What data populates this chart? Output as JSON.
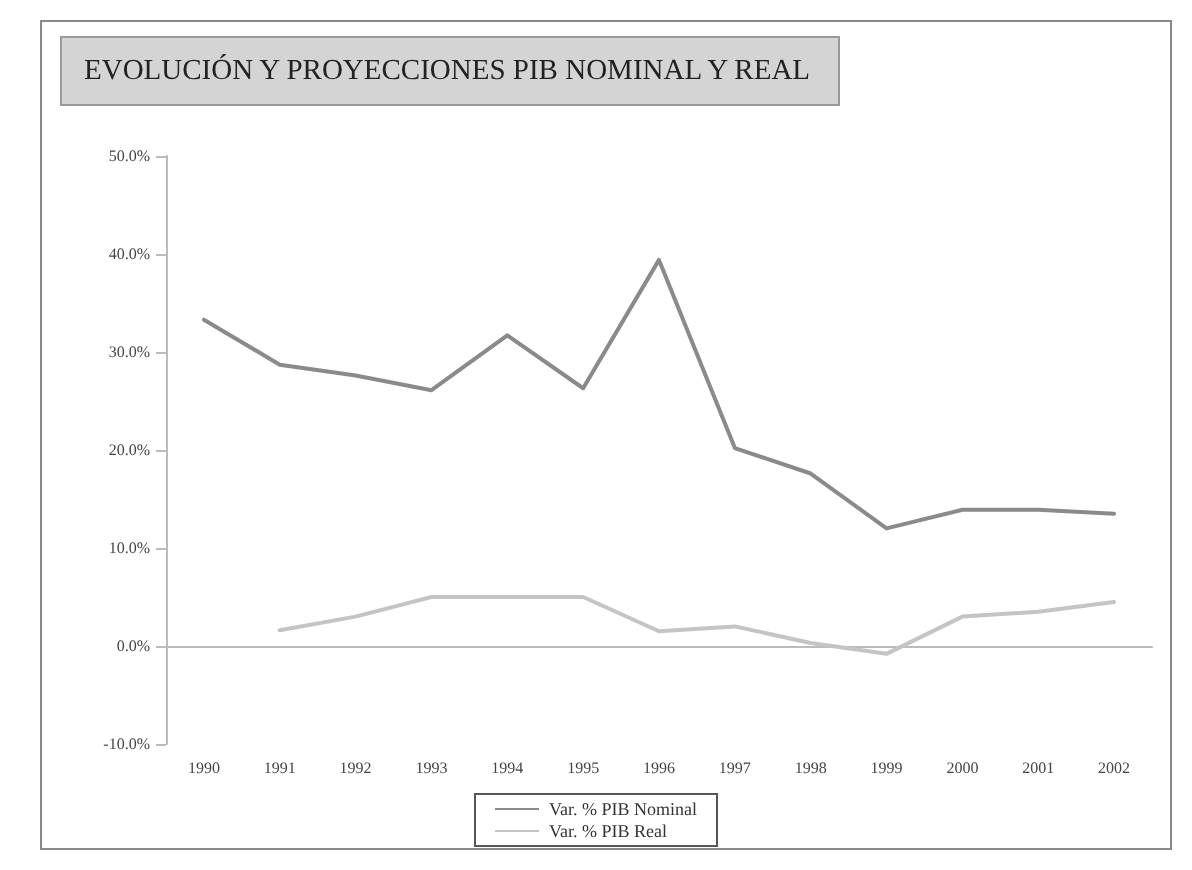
{
  "chart_data": {
    "type": "line",
    "title": "EVOLUCIÓN Y PROYECCIONES PIB NOMINAL Y REAL",
    "categories": [
      "1990",
      "1991",
      "1992",
      "1993",
      "1994",
      "1995",
      "1996",
      "1997",
      "1998",
      "1999",
      "2000",
      "2001",
      "2002"
    ],
    "series": [
      {
        "name": "Var. % PIB Nominal",
        "color": "#8a8a8a",
        "values": [
          33.3,
          28.7,
          27.6,
          26.1,
          31.7,
          26.3,
          39.4,
          20.2,
          17.6,
          12.0,
          13.9,
          13.9,
          13.5
        ]
      },
      {
        "name": "Var. % PIB Real",
        "color": "#c4c4c4",
        "values": [
          null,
          1.6,
          3.0,
          5.0,
          5.0,
          5.0,
          1.5,
          2.0,
          0.3,
          -0.8,
          3.0,
          3.5,
          4.5
        ]
      }
    ],
    "ylim": [
      -10,
      50
    ],
    "yticks": [
      {
        "value": -10,
        "label": "-10.0%"
      },
      {
        "value": 0,
        "label": "0.0%"
      },
      {
        "value": 10,
        "label": "10.0%"
      },
      {
        "value": 20,
        "label": "20.0%"
      },
      {
        "value": 30,
        "label": "30.0%"
      },
      {
        "value": 40,
        "label": "40.0%"
      },
      {
        "value": 50,
        "label": "50.0%"
      }
    ],
    "legend": "bottom",
    "marker": "none",
    "line_style": "solid"
  }
}
